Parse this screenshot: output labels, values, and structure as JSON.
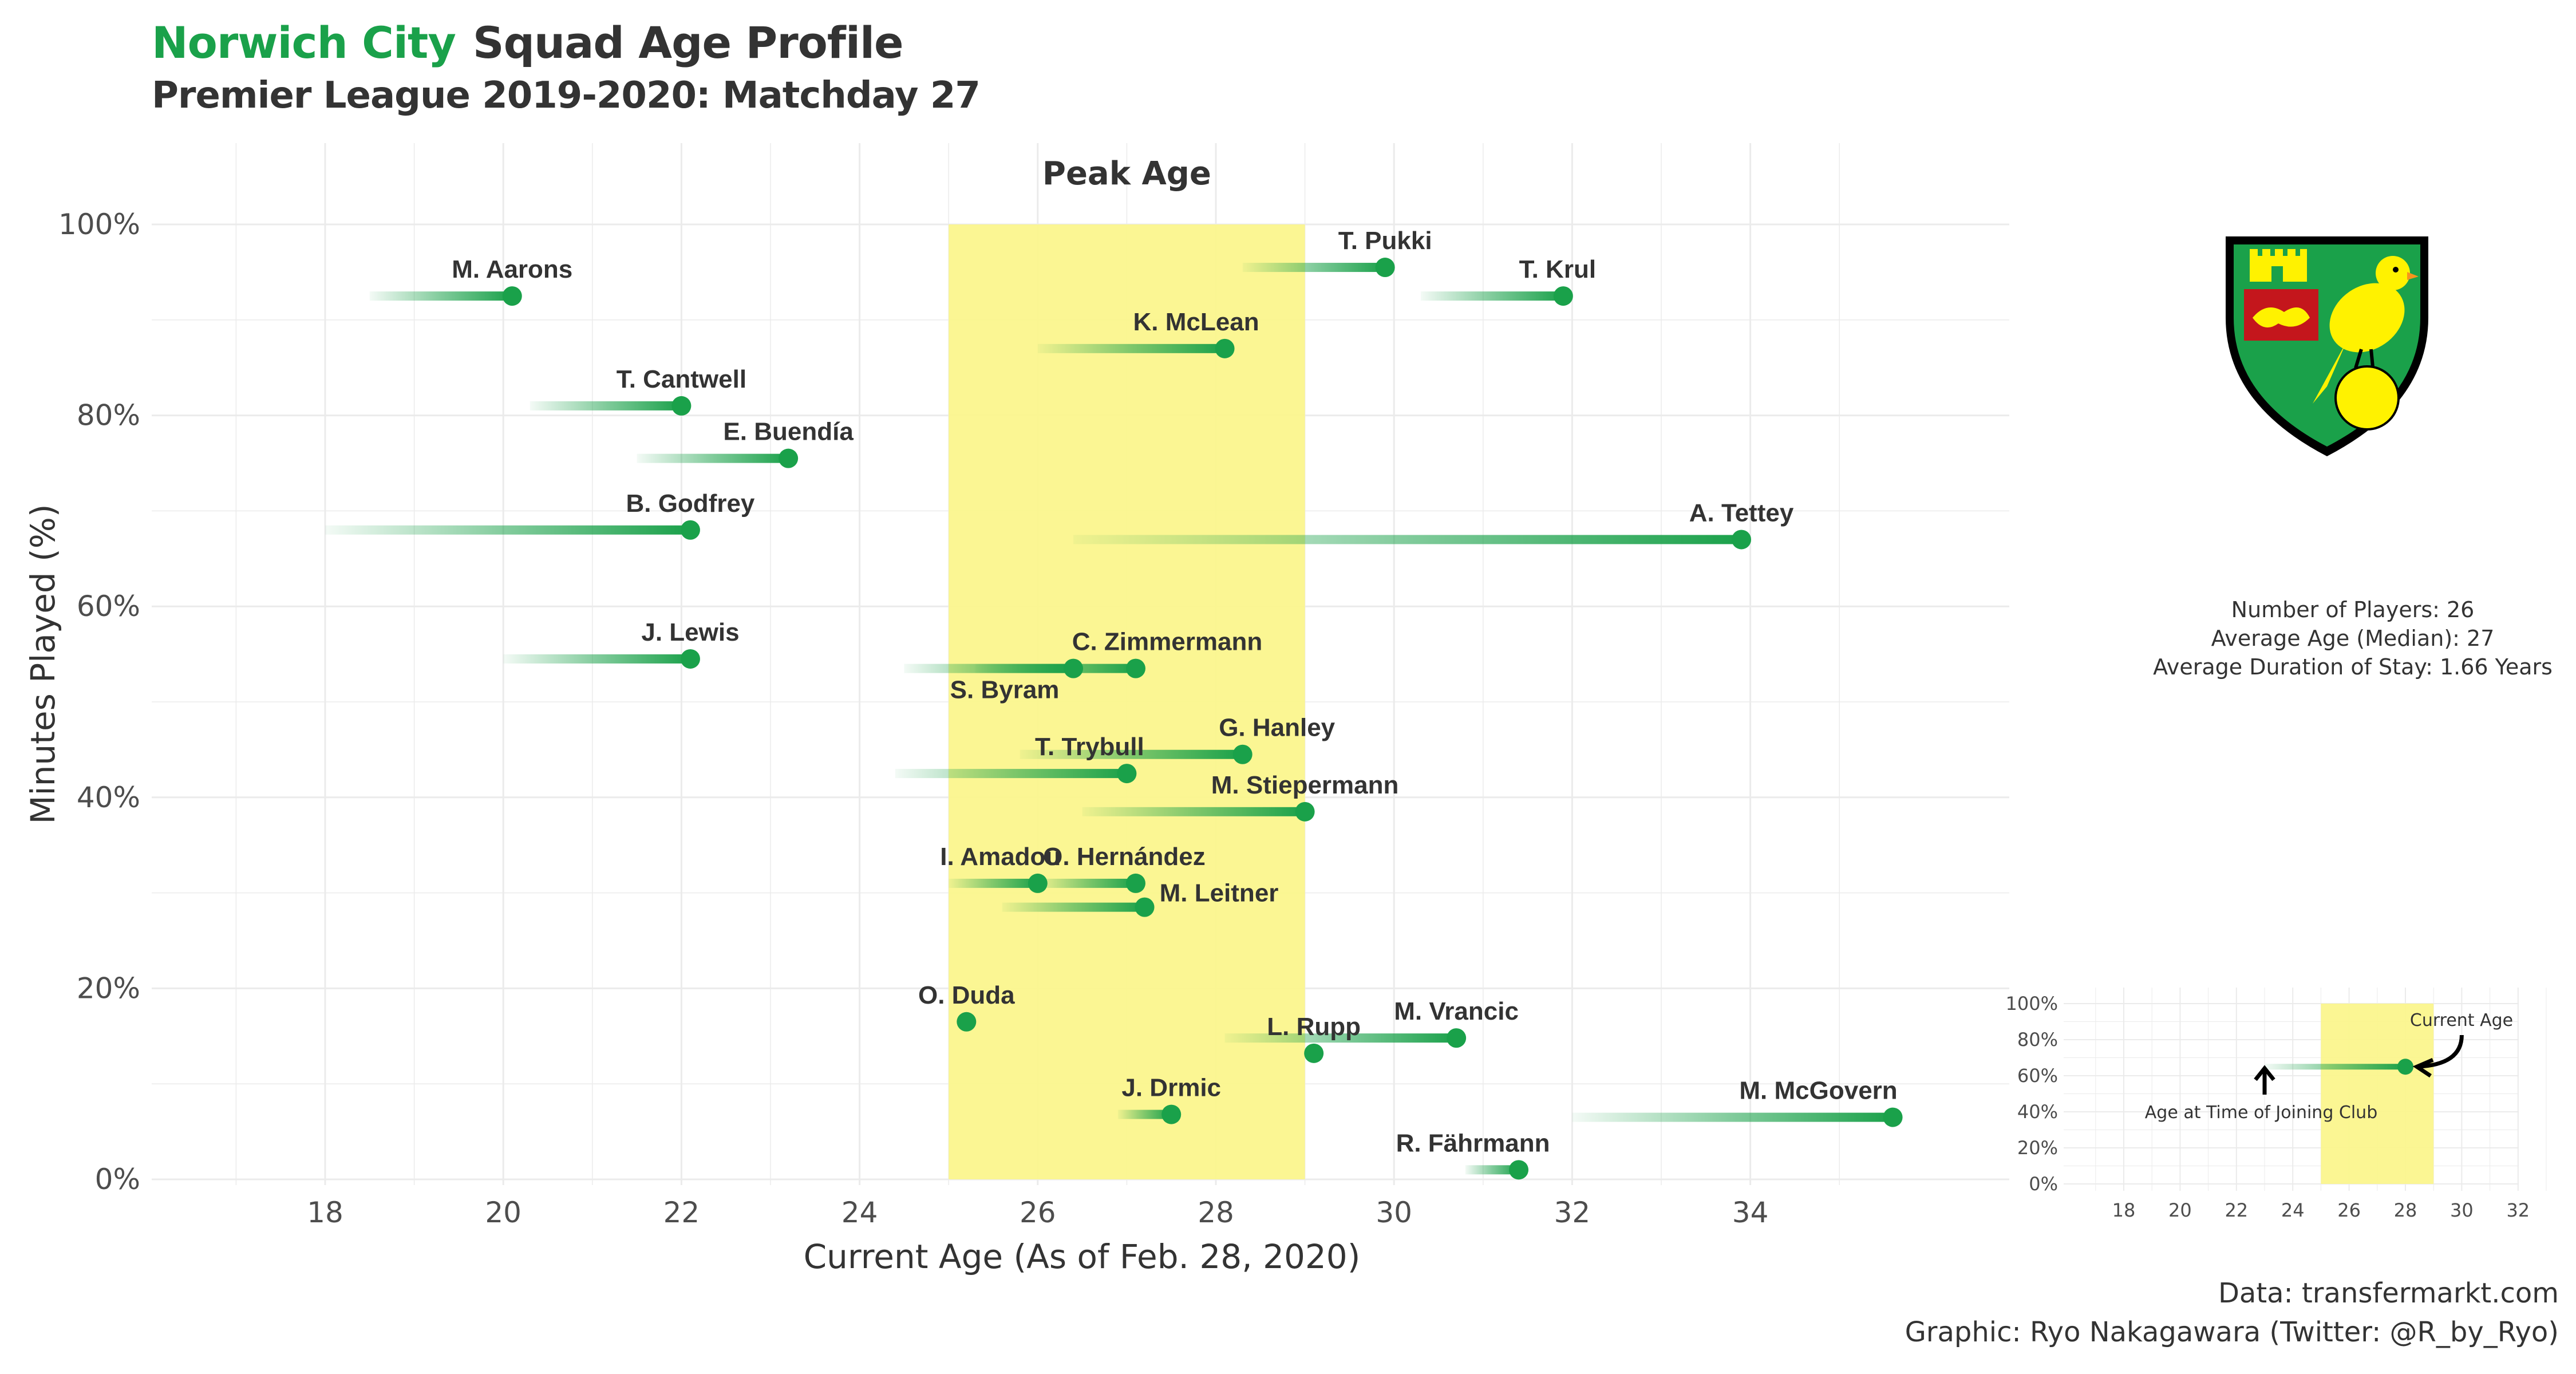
{
  "header": {
    "club": "Norwich City",
    "title_rest": "Squad Age Profile",
    "subtitle": "Premier League 2019-2020: Matchday 27"
  },
  "colors": {
    "brand_green": "#1aa14a",
    "peak_band": "#fbf58a",
    "crest_yellow": "#fff200",
    "crest_outline": "#000000"
  },
  "chart_data": {
    "type": "dumbbell-segment",
    "xlabel": "Current Age (As of Feb. 28, 2020)",
    "ylabel": "Minutes Played (%)",
    "xlim": [
      16.2,
      37.5
    ],
    "ylim": [
      0,
      100
    ],
    "xticks": [
      18,
      20,
      22,
      24,
      26,
      28,
      30,
      32,
      34
    ],
    "yticks": [
      0,
      20,
      40,
      60,
      80,
      100
    ],
    "ytick_labels": [
      "0%",
      "20%",
      "40%",
      "60%",
      "80%",
      "100%"
    ],
    "peak_age": {
      "label": "Peak Age",
      "from": 25,
      "to": 29
    },
    "players": [
      {
        "name": "M. Aarons",
        "age_joined": 18.5,
        "current_age": 20.1,
        "minutes_pct": 92.5
      },
      {
        "name": "T. Pukki",
        "age_joined": 28.3,
        "current_age": 29.9,
        "minutes_pct": 95.5
      },
      {
        "name": "T. Krul",
        "age_joined": 30.3,
        "current_age": 31.9,
        "minutes_pct": 92.5
      },
      {
        "name": "K. McLean",
        "age_joined": 26.0,
        "current_age": 28.1,
        "minutes_pct": 87.0
      },
      {
        "name": "T. Cantwell",
        "age_joined": 20.3,
        "current_age": 22.0,
        "minutes_pct": 81.0
      },
      {
        "name": "E. Buendía",
        "age_joined": 21.5,
        "current_age": 23.2,
        "minutes_pct": 75.5
      },
      {
        "name": "B. Godfrey",
        "age_joined": 18.0,
        "current_age": 22.1,
        "minutes_pct": 68.0
      },
      {
        "name": "A. Tettey",
        "age_joined": 26.4,
        "current_age": 33.9,
        "minutes_pct": 67.0
      },
      {
        "name": "J. Lewis",
        "age_joined": 20.0,
        "current_age": 22.1,
        "minutes_pct": 54.5
      },
      {
        "name": "C. Zimmermann",
        "age_joined": 25.3,
        "current_age": 27.1,
        "minutes_pct": 53.5
      },
      {
        "name": "S. Byram",
        "age_joined": 24.5,
        "current_age": 26.4,
        "minutes_pct": 53.5
      },
      {
        "name": "G. Hanley",
        "age_joined": 25.8,
        "current_age": 28.3,
        "minutes_pct": 44.5
      },
      {
        "name": "T. Trybull",
        "age_joined": 24.4,
        "current_age": 27.0,
        "minutes_pct": 42.5
      },
      {
        "name": "M. Stiepermann",
        "age_joined": 26.5,
        "current_age": 29.0,
        "minutes_pct": 38.5
      },
      {
        "name": "I. Amadou",
        "age_joined": 25.0,
        "current_age": 26.0,
        "minutes_pct": 31.0
      },
      {
        "name": "O. Hernández",
        "age_joined": 26.0,
        "current_age": 27.1,
        "minutes_pct": 31.0
      },
      {
        "name": "M. Leitner",
        "age_joined": 25.6,
        "current_age": 27.2,
        "minutes_pct": 28.5
      },
      {
        "name": "O. Duda",
        "age_joined": 25.2,
        "current_age": 25.2,
        "minutes_pct": 16.5
      },
      {
        "name": "M. Vrancic",
        "age_joined": 28.1,
        "current_age": 30.7,
        "minutes_pct": 14.8
      },
      {
        "name": "L. Rupp",
        "age_joined": 29.1,
        "current_age": 29.1,
        "minutes_pct": 13.2
      },
      {
        "name": "J. Drmic",
        "age_joined": 26.9,
        "current_age": 27.5,
        "minutes_pct": 6.8
      },
      {
        "name": "M. McGovern",
        "age_joined": 32.0,
        "current_age": 35.6,
        "minutes_pct": 6.5
      },
      {
        "name": "R. Fährmann",
        "age_joined": 30.8,
        "current_age": 31.4,
        "minutes_pct": 1.0
      }
    ]
  },
  "info": {
    "num_players": "Number of Players: 26",
    "avg_age": "Average Age (Median): 27",
    "avg_stay": "Average Duration of Stay: 1.66 Years"
  },
  "legend": {
    "xticks": [
      18,
      20,
      22,
      24,
      26,
      28,
      30,
      32
    ],
    "ytick_labels": [
      "0%",
      "20%",
      "40%",
      "60%",
      "80%",
      "100%"
    ],
    "example": {
      "age_joined": 23.0,
      "current_age": 28.0,
      "minutes_pct": 65
    },
    "peak": {
      "from": 25,
      "to": 29
    },
    "label_current": "Current Age",
    "label_joined": "Age at Time of Joining Club"
  },
  "credits": {
    "data": "Data: transfermarkt.com",
    "graphic": "Graphic: Ryo Nakagawara (Twitter: @R_by_Ryo)"
  }
}
